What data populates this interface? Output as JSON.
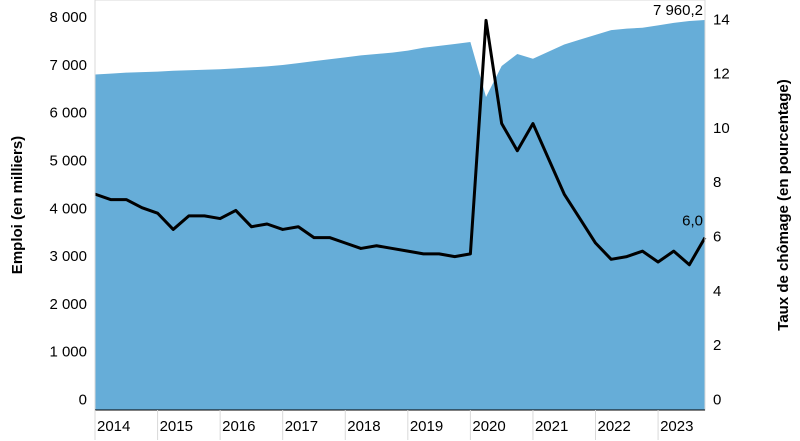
{
  "chart_data": {
    "type": "area-line",
    "categories": [
      "2014",
      null,
      null,
      null,
      "2015",
      null,
      null,
      null,
      "2016",
      null,
      null,
      null,
      "2017",
      null,
      null,
      null,
      "2018",
      null,
      null,
      null,
      "2019",
      null,
      null,
      null,
      "2020",
      null,
      null,
      null,
      "2021",
      null,
      null,
      null,
      "2022",
      null,
      null,
      null,
      "2023",
      null,
      null,
      null
    ],
    "series": [
      {
        "name": "Emploi",
        "type": "area",
        "color": "#66add8",
        "values": [
          6820,
          6840,
          6860,
          6870,
          6880,
          6900,
          6910,
          6920,
          6930,
          6950,
          6970,
          6990,
          7020,
          7060,
          7100,
          7140,
          7180,
          7220,
          7250,
          7280,
          7320,
          7380,
          7420,
          7460,
          7500,
          6350,
          7000,
          7250,
          7150,
          7300,
          7450,
          7550,
          7650,
          7750,
          7780,
          7800,
          7850,
          7900,
          7940,
          7960.2
        ],
        "value_labels": [
          null,
          null,
          null,
          null,
          null,
          null,
          null,
          null,
          null,
          null,
          null,
          null,
          null,
          null,
          null,
          null,
          null,
          null,
          null,
          null,
          null,
          null,
          null,
          null,
          null,
          null,
          null,
          null,
          null,
          null,
          null,
          null,
          null,
          null,
          null,
          null,
          null,
          null,
          null,
          "7 960,2"
        ]
      },
      {
        "name": "Taux de chômage",
        "type": "line",
        "axis": "y2",
        "color": "#000000",
        "values": [
          7.6,
          7.4,
          7.4,
          7.1,
          6.9,
          6.3,
          6.8,
          6.8,
          6.7,
          7.0,
          6.4,
          6.5,
          6.3,
          6.4,
          6.0,
          6.0,
          5.8,
          5.6,
          5.7,
          5.6,
          5.5,
          5.4,
          5.4,
          5.3,
          5.4,
          14.0,
          10.2,
          9.2,
          10.2,
          8.9,
          7.6,
          6.7,
          5.8,
          5.2,
          5.3,
          5.5,
          5.1,
          5.5,
          5.0,
          6.0
        ],
        "value_labels": [
          null,
          null,
          null,
          null,
          null,
          null,
          null,
          null,
          null,
          null,
          null,
          null,
          null,
          null,
          null,
          null,
          null,
          null,
          null,
          null,
          null,
          null,
          null,
          null,
          null,
          null,
          null,
          null,
          null,
          null,
          null,
          null,
          null,
          null,
          null,
          null,
          null,
          null,
          null,
          "6,0"
        ]
      }
    ],
    "ylabel": "Emploi (en milliers)",
    "y2label": "Taux de chômage (en pourcentage)",
    "ylim": [
      -200,
      8380
    ],
    "yticks": [
      0,
      {
        "value": 1000,
        "label": "1 000"
      },
      {
        "value": 2000,
        "label": "2 000"
      },
      {
        "value": 3000,
        "label": "3 000"
      },
      {
        "value": 4000,
        "label": "4 000"
      },
      {
        "value": 5000,
        "label": "5 000"
      },
      {
        "value": 6000,
        "label": "6 000"
      },
      {
        "value": 7000,
        "label": "7 000"
      },
      {
        "value": 8000,
        "label": "8 000"
      }
    ],
    "y2lim": [
      -0.35,
      14.75
    ],
    "y2ticks": [
      0,
      2,
      4,
      6,
      8,
      10,
      12,
      14
    ]
  }
}
